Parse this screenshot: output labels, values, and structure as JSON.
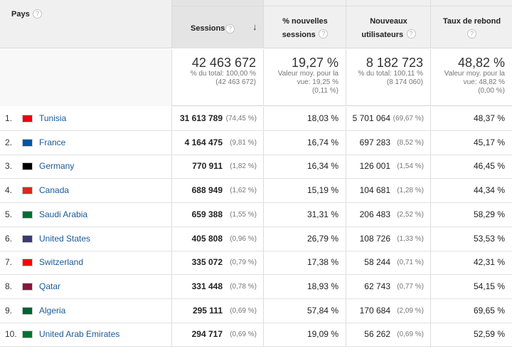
{
  "header": {
    "col_country": "Pays",
    "col_sessions": "Sessions",
    "col_new_sessions_1": "% nouvelles",
    "col_new_sessions_2": "sessions",
    "col_new_users_1": "Nouveaux",
    "col_new_users_2": "utilisateurs",
    "col_bounce_1": "Taux de rebond",
    "help": "?",
    "sort_arrow": "↓"
  },
  "summary": {
    "sessions_big": "42 463 672",
    "sessions_l1": "% du total: 100,00 %",
    "sessions_l2": "(42 463 672)",
    "newsess_big": "19,27 %",
    "newsess_l1": "Valeur moy. pour la",
    "newsess_l2": "vue: 19,25 %",
    "newsess_l3": "(0,11 %)",
    "newusers_big": "8 182 723",
    "newusers_l1": "% du total: 100,11 %",
    "newusers_l2": "(8 174 060)",
    "bounce_big": "48,82 %",
    "bounce_l1": "Valeur moy. pour la",
    "bounce_l2": "vue: 48,82 %",
    "bounce_l3": "(0,00 %)"
  },
  "rows": [
    {
      "rank": "1.",
      "country": "Tunisia",
      "flag": "#e70013",
      "sessions": "31 613 789",
      "sessions_pct": "(74,45 %)",
      "new_sessions": "18,03 %",
      "new_users": "5 701 064",
      "new_users_pct": "(69,67 %)",
      "bounce": "48,37 %"
    },
    {
      "rank": "2.",
      "country": "France",
      "flag": "#0055a4",
      "sessions": "4 164 475",
      "sessions_pct": "(9,81 %)",
      "new_sessions": "16,74 %",
      "new_users": "697 283",
      "new_users_pct": "(8,52 %)",
      "bounce": "45,17 %"
    },
    {
      "rank": "3.",
      "country": "Germany",
      "flag": "#000000",
      "sessions": "770 911",
      "sessions_pct": "(1,82 %)",
      "new_sessions": "16,34 %",
      "new_users": "126 001",
      "new_users_pct": "(1,54 %)",
      "bounce": "46,45 %"
    },
    {
      "rank": "4.",
      "country": "Canada",
      "flag": "#d52b1e",
      "sessions": "688 949",
      "sessions_pct": "(1,62 %)",
      "new_sessions": "15,19 %",
      "new_users": "104 681",
      "new_users_pct": "(1,28 %)",
      "bounce": "44,34 %"
    },
    {
      "rank": "5.",
      "country": "Saudi Arabia",
      "flag": "#006c35",
      "sessions": "659 388",
      "sessions_pct": "(1,55 %)",
      "new_sessions": "31,31 %",
      "new_users": "206 483",
      "new_users_pct": "(2,52 %)",
      "bounce": "58,29 %"
    },
    {
      "rank": "6.",
      "country": "United States",
      "flag": "#3c3b6e",
      "sessions": "405 808",
      "sessions_pct": "(0,96 %)",
      "new_sessions": "26,79 %",
      "new_users": "108 726",
      "new_users_pct": "(1,33 %)",
      "bounce": "53,53 %"
    },
    {
      "rank": "7.",
      "country": "Switzerland",
      "flag": "#ff0000",
      "sessions": "335 072",
      "sessions_pct": "(0,79 %)",
      "new_sessions": "17,38 %",
      "new_users": "58 244",
      "new_users_pct": "(0,71 %)",
      "bounce": "42,31 %"
    },
    {
      "rank": "8.",
      "country": "Qatar",
      "flag": "#8a1538",
      "sessions": "331 448",
      "sessions_pct": "(0,78 %)",
      "new_sessions": "18,93 %",
      "new_users": "62 743",
      "new_users_pct": "(0,77 %)",
      "bounce": "54,15 %"
    },
    {
      "rank": "9.",
      "country": "Algeria",
      "flag": "#006233",
      "sessions": "295 111",
      "sessions_pct": "(0,69 %)",
      "new_sessions": "57,84 %",
      "new_users": "170 684",
      "new_users_pct": "(2,09 %)",
      "bounce": "69,65 %"
    },
    {
      "rank": "10.",
      "country": "United Arab Emirates",
      "flag": "#00732f",
      "sessions": "294 717",
      "sessions_pct": "(0,69 %)",
      "new_sessions": "19,09 %",
      "new_users": "56 262",
      "new_users_pct": "(0,69 %)",
      "bounce": "52,59 %"
    }
  ]
}
